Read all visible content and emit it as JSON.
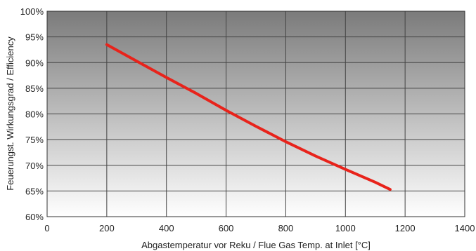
{
  "chart_data": {
    "type": "line",
    "xlabel": "Abgastemperatur vor Reku / Flue Gas Temp. at Inlet [°C]",
    "ylabel": "Feuerungst. Wirkungsgrad / Efficiency",
    "xlim": [
      0,
      1400
    ],
    "ylim": [
      60,
      100
    ],
    "x_ticks": [
      "0",
      "200",
      "400",
      "600",
      "800",
      "1000",
      "1200",
      "1400"
    ],
    "y_ticks": [
      "60%",
      "65%",
      "70%",
      "75%",
      "80%",
      "85%",
      "90%",
      "95%",
      "100%"
    ],
    "grid": true,
    "series": [
      {
        "color": "#e8231b",
        "x": [
          200,
          300,
          400,
          500,
          600,
          700,
          800,
          900,
          1000,
          1100,
          1150
        ],
        "y": [
          93.5,
          90.3,
          87.1,
          84.0,
          80.7,
          77.6,
          74.6,
          71.8,
          69.2,
          66.7,
          65.3
        ]
      }
    ]
  }
}
